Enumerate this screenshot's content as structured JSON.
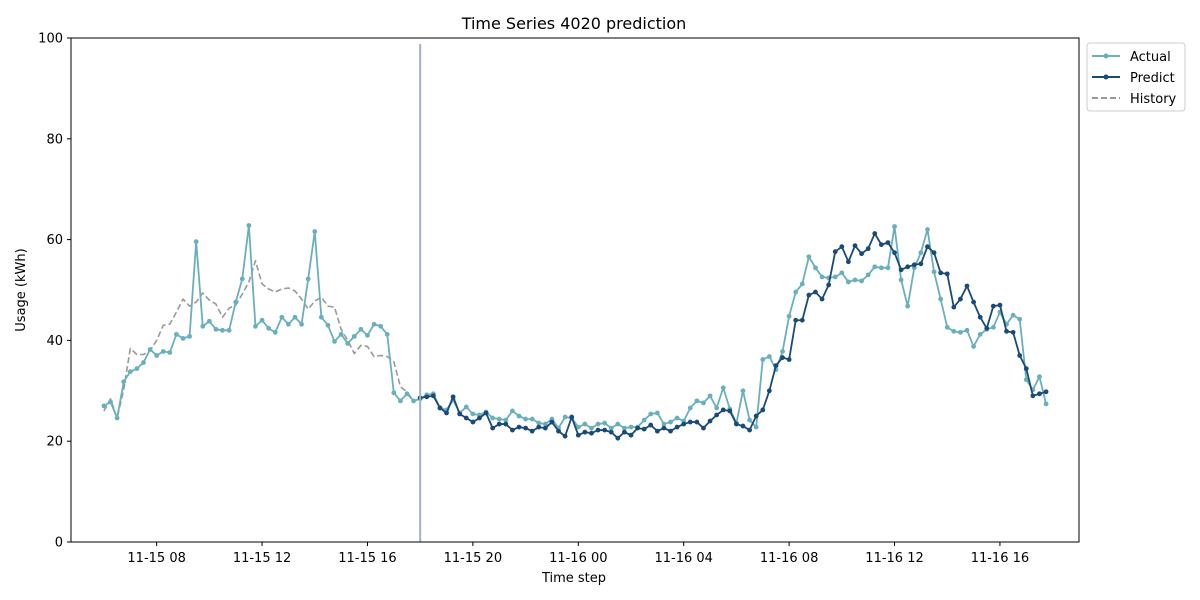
{
  "chart_data": {
    "type": "line",
    "title": "Time Series 4020 prediction",
    "xlabel": "Time step",
    "ylabel": "Usage (kWh)",
    "ylim": [
      0,
      100
    ],
    "yticks": [
      0,
      20,
      40,
      60,
      80,
      100
    ],
    "x_start": "11-15 06:00",
    "x_step_minutes": 15,
    "x_end": "11-16 18:00",
    "x_range": [
      "11-15 04:45",
      "11-16 19:00"
    ],
    "xticks": [
      "11-15 08",
      "11-15 12",
      "11-15 16",
      "11-15 20",
      "11-16 00",
      "11-16 04",
      "11-16 08",
      "11-16 12",
      "11-16 16"
    ],
    "xtick_times": [
      "11-15 08:00",
      "11-15 12:00",
      "11-15 16:00",
      "11-15 20:00",
      "11-16 00:00",
      "11-16 04:00",
      "11-16 08:00",
      "11-16 12:00",
      "11-16 16:00"
    ],
    "forecast_start": "11-15 18:00",
    "legend_position": "outside-top-right",
    "grid": false,
    "series": [
      {
        "name": "Actual",
        "color": "#6ab0bc",
        "style": "solid-marker",
        "values": [
          27.0,
          27.8,
          24.6,
          31.8,
          33.8,
          34.4,
          35.6,
          38.2,
          37.0,
          37.8,
          37.6,
          41.2,
          40.4,
          40.8,
          59.6,
          42.8,
          43.8,
          42.2,
          42.0,
          42.0,
          47.6,
          52.2,
          62.8,
          42.8,
          44.0,
          42.4,
          41.6,
          44.6,
          43.2,
          44.6,
          43.2,
          52.2,
          61.6,
          44.6,
          43.0,
          39.8,
          41.2,
          39.4,
          40.8,
          42.2,
          41.0,
          43.2,
          42.8,
          41.2,
          29.6,
          28.0,
          29.4,
          28.0,
          28.4,
          29.2,
          29.4,
          26.6,
          26.2,
          28.2,
          25.6,
          26.8,
          25.4,
          25.2,
          25.8,
          24.6,
          24.4,
          24.2,
          26.0,
          25.0,
          24.4,
          24.4,
          23.6,
          23.4,
          24.4,
          22.6,
          24.8,
          24.6,
          22.8,
          23.4,
          22.6,
          23.4,
          23.6,
          22.6,
          23.4,
          22.6,
          22.8,
          22.8,
          24.2,
          25.4,
          25.6,
          23.4,
          23.8,
          24.6,
          24.0,
          26.6,
          28.0,
          27.6,
          29.0,
          26.6,
          30.6,
          26.4,
          23.6,
          30.0,
          24.2,
          22.8,
          36.2,
          36.8,
          34.2,
          37.8,
          44.8,
          49.6,
          51.2,
          56.6,
          54.4,
          52.6,
          52.4,
          52.6,
          53.4,
          51.6,
          52.0,
          51.8,
          53.0,
          54.6,
          54.4,
          54.4,
          62.6,
          52.0,
          46.8,
          54.4,
          57.4,
          62.0,
          53.6,
          48.2,
          42.6,
          41.8,
          41.6,
          42.0,
          38.8,
          41.2,
          42.2,
          42.6,
          45.6,
          43.2,
          45.0,
          44.2,
          32.2,
          30.2,
          32.8,
          27.4
        ]
      },
      {
        "name": "Predict",
        "color": "#1a4a78",
        "style": "solid-marker",
        "offset": 48,
        "values": [
          28.6,
          28.8,
          29.0,
          26.6,
          25.6,
          28.8,
          25.4,
          24.6,
          23.8,
          24.6,
          25.6,
          22.6,
          23.4,
          23.4,
          22.2,
          22.8,
          22.6,
          22.0,
          22.8,
          22.6,
          23.8,
          22.0,
          21.0,
          24.8,
          21.2,
          21.8,
          21.6,
          22.2,
          22.2,
          21.8,
          20.6,
          21.8,
          21.2,
          22.6,
          22.4,
          23.2,
          22.0,
          22.6,
          22.0,
          22.8,
          23.4,
          23.8,
          23.8,
          22.6,
          24.0,
          25.2,
          26.2,
          26.0,
          23.4,
          23.0,
          22.2,
          25.0,
          26.2,
          30.0,
          35.0,
          36.6,
          36.2,
          44.0,
          44.0,
          49.0,
          49.6,
          48.2,
          51.0,
          57.6,
          58.6,
          55.6,
          58.8,
          57.2,
          58.2,
          61.2,
          59.0,
          59.4,
          57.4,
          54.0,
          54.6,
          55.0,
          55.2,
          58.6,
          57.4,
          53.4,
          53.2,
          46.6,
          48.2,
          50.8,
          47.6,
          44.6,
          42.4,
          46.8,
          47.0,
          41.8,
          41.6,
          37.0,
          34.4,
          29.0,
          29.4,
          29.8
        ]
      },
      {
        "name": "History",
        "color": "#999999",
        "style": "dashed",
        "values": [
          26.0,
          28.4,
          24.6,
          30.2,
          38.4,
          37.2,
          37.2,
          38.0,
          40.0,
          43.0,
          43.2,
          45.6,
          48.2,
          46.8,
          47.6,
          49.4,
          48.0,
          47.2,
          44.6,
          46.4,
          47.0,
          49.2,
          51.6,
          55.8,
          51.2,
          50.2,
          49.6,
          50.2,
          50.4,
          49.8,
          48.2,
          46.2,
          47.8,
          48.6,
          46.8,
          46.6,
          42.2,
          40.0,
          37.4,
          39.0,
          38.8,
          36.8,
          37.0,
          36.8,
          35.8,
          30.8,
          29.8,
          28.0
        ]
      }
    ]
  }
}
